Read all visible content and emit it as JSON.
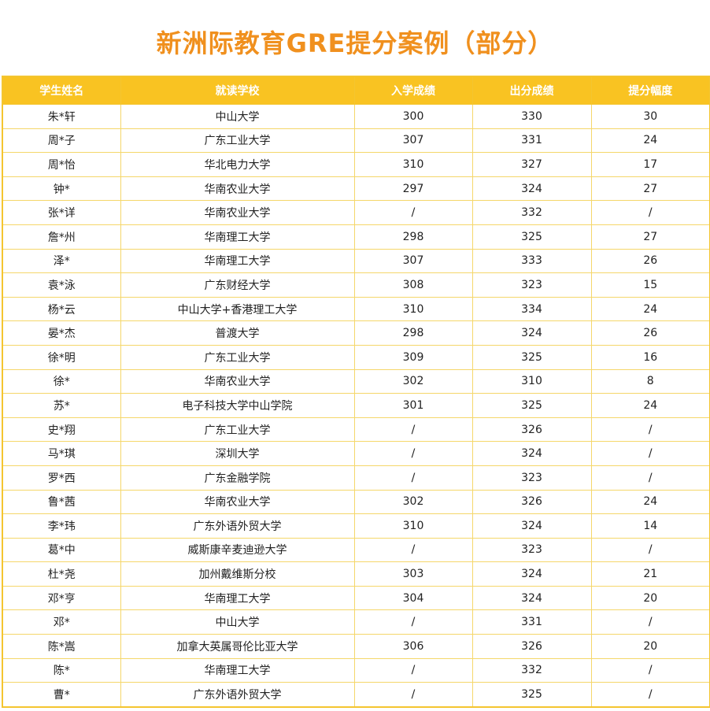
{
  "title": "新洲际教育GRE提分案例（部分）",
  "table": {
    "headers": [
      "学生姓名",
      "就读学校",
      "入学成绩",
      "出分成绩",
      "提分幅度"
    ],
    "rows": [
      [
        "朱*轩",
        "中山大学",
        "300",
        "330",
        "30"
      ],
      [
        "周*子",
        "广东工业大学",
        "307",
        "331",
        "24"
      ],
      [
        "周*怡",
        "华北电力大学",
        "310",
        "327",
        "17"
      ],
      [
        "钟*",
        "华南农业大学",
        "297",
        "324",
        "27"
      ],
      [
        "张*详",
        "华南农业大学",
        "/",
        "332",
        "/"
      ],
      [
        "詹*州",
        "华南理工大学",
        "298",
        "325",
        "27"
      ],
      [
        "泽*",
        "华南理工大学",
        "307",
        "333",
        "26"
      ],
      [
        "袁*泳",
        "广东财经大学",
        "308",
        "323",
        "15"
      ],
      [
        "杨*云",
        "中山大学+香港理工大学",
        "310",
        "334",
        "24"
      ],
      [
        "晏*杰",
        "普渡大学",
        "298",
        "324",
        "26"
      ],
      [
        "徐*明",
        "广东工业大学",
        "309",
        "325",
        "16"
      ],
      [
        "徐*",
        "华南农业大学",
        "302",
        "310",
        "8"
      ],
      [
        "苏*",
        "电子科技大学中山学院",
        "301",
        "325",
        "24"
      ],
      [
        "史*翔",
        "广东工业大学",
        "/",
        "326",
        "/"
      ],
      [
        "马*琪",
        "深圳大学",
        "/",
        "324",
        "/"
      ],
      [
        "罗*西",
        "广东金融学院",
        "/",
        "323",
        "/"
      ],
      [
        "鲁*茜",
        "华南农业大学",
        "302",
        "326",
        "24"
      ],
      [
        "李*玮",
        "广东外语外贸大学",
        "310",
        "324",
        "14"
      ],
      [
        "葛*中",
        "威斯康辛麦迪逊大学",
        "/",
        "323",
        "/"
      ],
      [
        "杜*尧",
        "加州戴维斯分校",
        "303",
        "324",
        "21"
      ],
      [
        "邓*亨",
        "华南理工大学",
        "304",
        "324",
        "20"
      ],
      [
        "邓*",
        "中山大学",
        "/",
        "331",
        "/"
      ],
      [
        "陈*嵩",
        "加拿大英属哥伦比亚大学",
        "306",
        "326",
        "20"
      ],
      [
        "陈*",
        "华南理工大学",
        "/",
        "332",
        "/"
      ],
      [
        "曹*",
        "广东外语外贸大学",
        "/",
        "325",
        "/"
      ]
    ]
  },
  "colors": {
    "title": "#f0901e",
    "header_bg": "#f9c322",
    "border": "#f4c530"
  }
}
